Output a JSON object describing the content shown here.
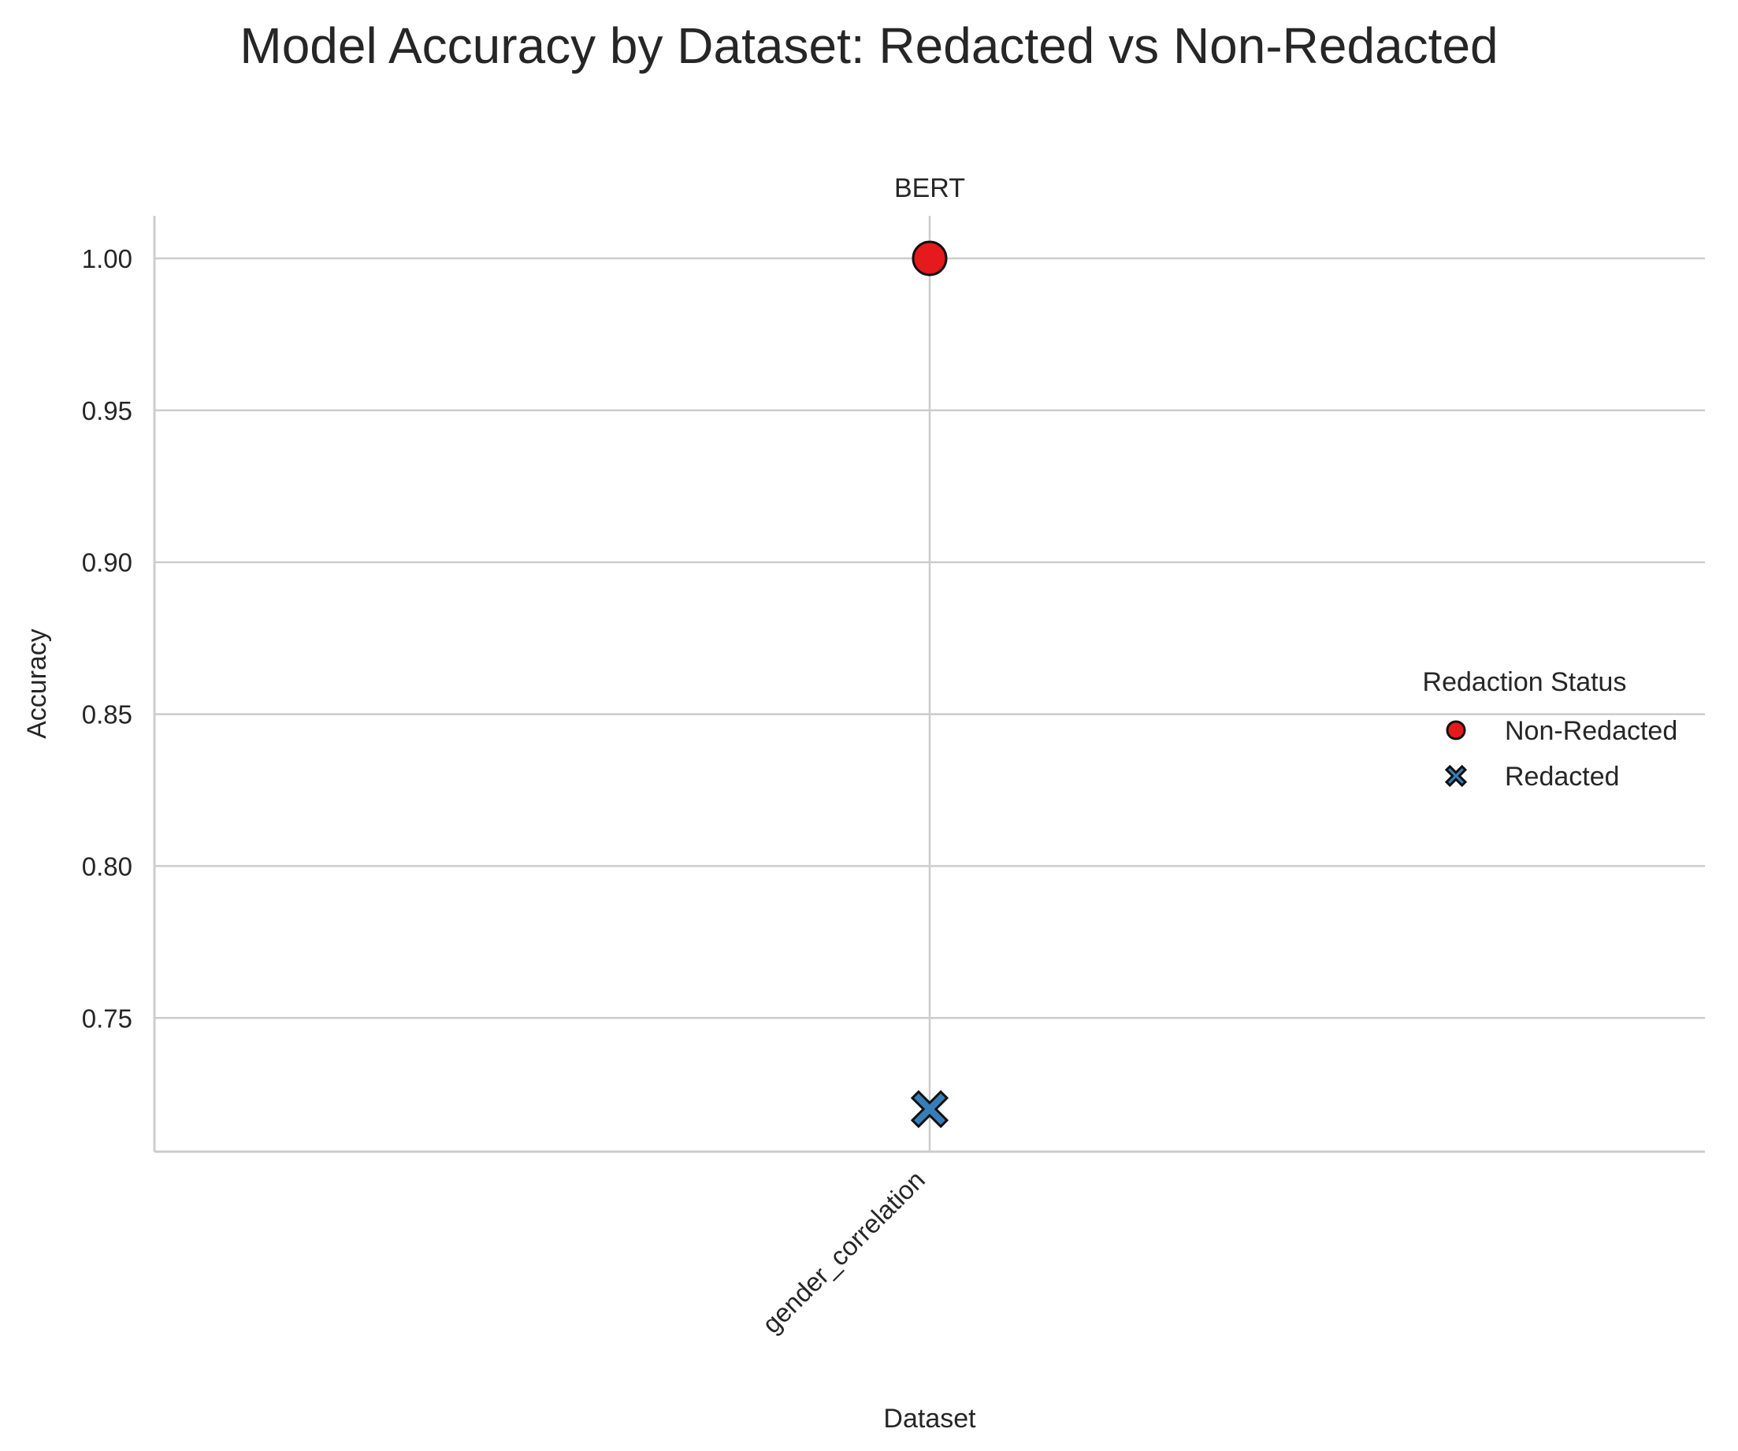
{
  "title": "Model Accuracy by Dataset: Redacted vs Non-Redacted",
  "chart_data": {
    "type": "scatter",
    "facet_title": "BERT",
    "categories": [
      "gender_correlation"
    ],
    "xlabel": "Dataset",
    "ylabel": "Accuracy",
    "ylim": [
      0.706,
      1.014
    ],
    "yticks": [
      0.75,
      0.8,
      0.85,
      0.9,
      0.95,
      1.0
    ],
    "ytick_labels": [
      "0.75",
      "0.80",
      "0.85",
      "0.90",
      "0.95",
      "1.00"
    ],
    "grid": true,
    "legend": {
      "title": "Redaction Status",
      "placement": "center-right",
      "entries": [
        {
          "label": "Non-Redacted",
          "marker": "circle",
          "color": "#e41a1c"
        },
        {
          "label": "Redacted",
          "marker": "x",
          "color": "#377eb8"
        }
      ]
    },
    "series": [
      {
        "name": "Non-Redacted",
        "marker": "circle",
        "color": "#e41a1c",
        "points": [
          {
            "x": "gender_correlation",
            "y": 1.0
          }
        ]
      },
      {
        "name": "Redacted",
        "marker": "x",
        "color": "#377eb8",
        "points": [
          {
            "x": "gender_correlation",
            "y": 0.72
          }
        ]
      }
    ]
  }
}
